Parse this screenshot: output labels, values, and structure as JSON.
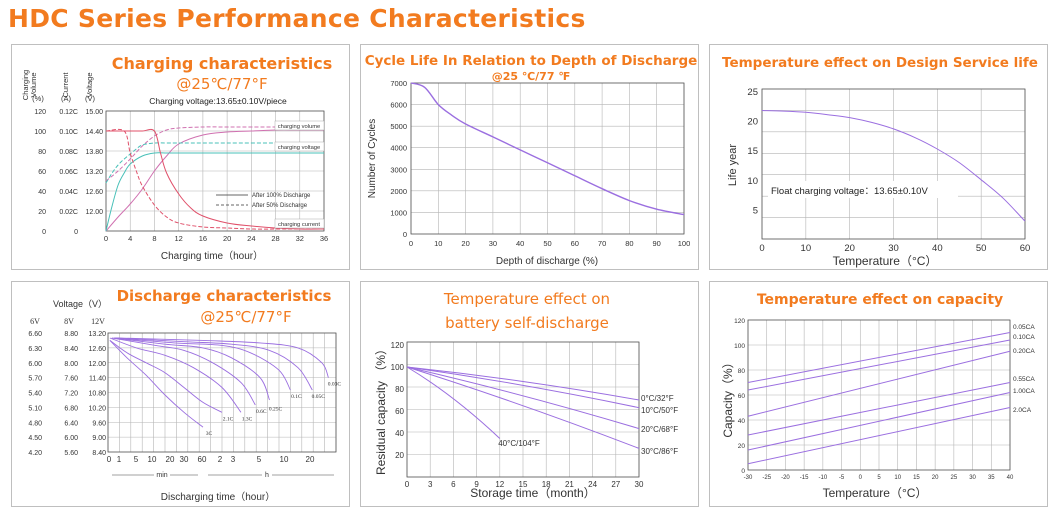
{
  "page_title": "HDC Series Performance Characteristics",
  "colors": {
    "title": "#f27b1f",
    "chart_title": "#7b2fa8",
    "curve": "#9b6fe0",
    "grid": "#b5b5b5"
  },
  "chart_data": [
    {
      "id": "charging",
      "type": "line",
      "title": "Charging characteristics",
      "subtitle": "@25℃/77°F",
      "note": "Charging voltage:13.65±0.10V/piece",
      "xlabel": "Charging time（hour）",
      "xlim": [
        0,
        36
      ],
      "xticks": [
        0,
        4,
        8,
        12,
        16,
        20,
        24,
        28,
        32,
        36
      ],
      "axis_headers": [
        [
          "Charging",
          "Volume",
          "(%)"
        ],
        [
          "Current",
          "(A)"
        ],
        [
          "Voltage",
          "(V)"
        ]
      ],
      "y_rows": [
        {
          "pct": "120",
          "cur": "0.12C",
          "volt": "15.00"
        },
        {
          "pct": "100",
          "cur": "0.10C",
          "volt": "14.40"
        },
        {
          "pct": "80",
          "cur": "0.08C",
          "volt": "13.80"
        },
        {
          "pct": "60",
          "cur": "0.06C",
          "volt": "13.20"
        },
        {
          "pct": "40",
          "cur": "0.04C",
          "volt": "12.60"
        },
        {
          "pct": "20",
          "cur": "0.02C",
          "volt": "12.00"
        },
        {
          "pct": "0",
          "cur": "0",
          "volt": ""
        }
      ],
      "ylim": [
        0,
        120
      ],
      "curve_labels": [
        "charging volume",
        "charging voltage",
        "charging current"
      ],
      "legend": [
        "After 100% Discharge",
        "After  50%  Discharge"
      ],
      "series": [
        {
          "curve": "volume-100",
          "style": "solid",
          "color": "#d070b0",
          "x": [
            0,
            2,
            4,
            6,
            8,
            10,
            12,
            16,
            20,
            24,
            28,
            32,
            36
          ],
          "y": [
            0,
            14,
            27,
            42,
            60,
            75,
            87,
            96,
            99,
            100,
            101,
            101,
            101
          ]
        },
        {
          "curve": "volume-50",
          "style": "dashed",
          "color": "#d070b0",
          "x": [
            0,
            2,
            4,
            6,
            8,
            10,
            12,
            16,
            20,
            24,
            30,
            36
          ],
          "y": [
            50,
            60,
            72,
            85,
            95,
            101,
            103,
            104,
            104,
            104,
            104,
            104
          ]
        },
        {
          "curve": "voltage-100",
          "style": "solid",
          "color": "#48c0b8",
          "x": [
            0,
            1,
            2,
            3,
            4,
            6,
            8,
            10,
            12,
            16,
            20,
            24,
            28,
            32,
            36
          ],
          "y": [
            0,
            25,
            46,
            58,
            67,
            75,
            78,
            78,
            78,
            78,
            78,
            78,
            78,
            78,
            78
          ]
        },
        {
          "curve": "voltage-50",
          "style": "dashed",
          "color": "#48c0b8",
          "x": [
            0,
            1,
            2,
            3,
            4,
            5,
            6,
            8,
            10,
            14,
            20,
            28,
            36
          ],
          "y": [
            48,
            58,
            66,
            72,
            77,
            82,
            86,
            88,
            88,
            88,
            88,
            88,
            88
          ]
        },
        {
          "curve": "current-100",
          "style": "solid",
          "color": "#e0506a",
          "x": [
            0,
            4,
            6,
            8,
            9,
            10,
            12,
            14,
            16,
            20,
            24,
            28,
            32,
            36
          ],
          "y": [
            100,
            100,
            100,
            100,
            78,
            58,
            37,
            23,
            15,
            8,
            5,
            3,
            2,
            2
          ]
        },
        {
          "curve": "current-50",
          "style": "dashed",
          "color": "#e0506a",
          "x": [
            0,
            3,
            4,
            5,
            6,
            8,
            10,
            12,
            16,
            20,
            24,
            30,
            36
          ],
          "y": [
            100,
            100,
            78,
            60,
            45,
            26,
            14,
            8,
            4,
            3,
            2,
            2,
            2
          ]
        }
      ]
    },
    {
      "id": "cycle",
      "type": "line",
      "title": "Cycle Life In Relation to Depth of Discharge",
      "subtitle": "@25 ℃/77 ℉",
      "xlabel": "Depth of  discharge (%)",
      "ylabel": "Number of Cycles",
      "xlim": [
        0,
        100
      ],
      "ylim": [
        0,
        7000
      ],
      "xticks": [
        0,
        10,
        20,
        30,
        40,
        50,
        60,
        70,
        80,
        90,
        100
      ],
      "yticks": [
        0,
        1000,
        2000,
        3000,
        4000,
        5000,
        6000,
        7000
      ],
      "series": [
        {
          "x": [
            0,
            5,
            10,
            15,
            20,
            30,
            40,
            50,
            60,
            70,
            80,
            90,
            100
          ],
          "y": [
            7000,
            6800,
            6000,
            5500,
            5100,
            4500,
            3900,
            3300,
            2700,
            2100,
            1550,
            1150,
            900
          ]
        }
      ]
    },
    {
      "id": "temp_life",
      "type": "line",
      "title": "Temperature effect on Design Service life",
      "xlabel": "Temperature（°C）",
      "ylabel": "Life year",
      "note": "Float charging voltage：13.65±0.10V",
      "xlim": [
        0,
        60
      ],
      "ylim": [
        0,
        25
      ],
      "xticks": [
        0,
        10,
        20,
        30,
        40,
        50,
        60
      ],
      "yticks": [
        5,
        10,
        15,
        20,
        25
      ],
      "series": [
        {
          "x": [
            0,
            5,
            10,
            15,
            20,
            25,
            30,
            35,
            40,
            45,
            50,
            55,
            60
          ],
          "y": [
            21.7,
            21.6,
            21.4,
            21.0,
            20.5,
            19.7,
            18.6,
            17.1,
            15.2,
            12.9,
            10.0,
            6.9,
            3.0
          ]
        }
      ]
    },
    {
      "id": "discharge",
      "type": "line",
      "title": "Discharge characteristics",
      "subtitle": "@25℃/77°F",
      "xlabel": "Discharging time（hour）",
      "voltage_header": "Voltage（V）",
      "voltage_columns": [
        "6V",
        "8V",
        "12V"
      ],
      "y_rows": [
        {
          "v6": "6.60",
          "v8": "8.80",
          "v12": "13.20"
        },
        {
          "v6": "6.30",
          "v8": "8.40",
          "v12": "12.60"
        },
        {
          "v6": "6.00",
          "v8": "8.00",
          "v12": "12.00"
        },
        {
          "v6": "5.70",
          "v8": "7.60",
          "v12": "11.40"
        },
        {
          "v6": "5.40",
          "v8": "7.20",
          "v12": "10.80"
        },
        {
          "v6": "5.10",
          "v8": "6.80",
          "v12": "10.20"
        },
        {
          "v6": "4.80",
          "v8": "6.40",
          "v12": "9.60"
        },
        {
          "v6": "4.50",
          "v8": "6.00",
          "v12": "9.00"
        },
        {
          "v6": "4.20",
          "v8": "5.60",
          "v12": "8.40"
        }
      ],
      "ylim": [
        8.4,
        13.2
      ],
      "xtick_labels": [
        "0",
        "1",
        "5",
        "10",
        "20",
        "30",
        "60",
        "2",
        "3",
        "5",
        "10",
        "20"
      ],
      "xunit_labels": [
        "min",
        "h"
      ],
      "series": [
        {
          "name": "3C",
          "t": [
            0.2,
            2,
            4,
            6,
            8,
            10
          ],
          "y": [
            12.9,
            12.2,
            11.5,
            10.7,
            10.0,
            9.4
          ],
          "label_y": 9.2
        },
        {
          "name": "2.1C",
          "t": [
            0.2,
            2,
            4,
            6,
            8,
            10,
            12
          ],
          "y": [
            12.9,
            12.4,
            12.0,
            11.6,
            11.0,
            10.4,
            10.0
          ],
          "label_y": 9.8
        },
        {
          "name": "1.3C",
          "t": [
            0.2,
            3,
            6,
            9,
            12,
            14
          ],
          "y": [
            13.0,
            12.6,
            12.3,
            11.8,
            11.0,
            10.0
          ],
          "label_y": 9.8
        },
        {
          "name": "0.6C",
          "t": [
            0.4,
            5,
            8,
            11,
            14,
            15.5
          ],
          "y": [
            13.0,
            12.7,
            12.5,
            12.0,
            11.2,
            10.3
          ],
          "label_y": 10.1
        },
        {
          "name": "0.25C",
          "t": [
            0.6,
            6,
            10,
            13,
            16,
            17
          ],
          "y": [
            13.0,
            12.75,
            12.6,
            12.2,
            11.4,
            10.5
          ],
          "label_y": 10.2
        },
        {
          "name": "0.1C",
          "t": [
            0.7,
            7,
            12,
            15,
            18,
            19.2
          ],
          "y": [
            13.0,
            12.8,
            12.7,
            12.4,
            11.7,
            10.9
          ],
          "label_y": 10.7
        },
        {
          "name": "0.05C",
          "t": [
            0.8,
            8,
            13,
            17,
            20,
            21.5
          ],
          "y": [
            13.0,
            12.85,
            12.75,
            12.5,
            11.8,
            10.9
          ],
          "label_y": 10.7
        },
        {
          "name": "0.03C",
          "t": [
            1,
            10,
            16,
            20,
            22.5,
            23.2
          ],
          "y": [
            13.0,
            12.9,
            12.8,
            12.6,
            12.0,
            11.4
          ],
          "label_y": 11.2
        }
      ]
    },
    {
      "id": "self_discharge",
      "type": "line",
      "title": [
        "Temperature effect on",
        "battery self-discharge"
      ],
      "xlabel": "Storage time（month）",
      "ylabel": "Residual capacity （%）",
      "xlim": [
        0,
        30
      ],
      "ylim": [
        0,
        120
      ],
      "xticks": [
        0,
        3,
        6,
        9,
        12,
        15,
        18,
        21,
        24,
        27,
        30
      ],
      "yticks": [
        20,
        40,
        60,
        80,
        100,
        120
      ],
      "series": [
        {
          "name": "0°C/32°F",
          "x": [
            0,
            30
          ],
          "y": [
            100,
            70
          ]
        },
        {
          "name": "10°C/50°F",
          "x": [
            0,
            30
          ],
          "y": [
            100,
            63
          ]
        },
        {
          "name": "20°C/68°F",
          "x": [
            0,
            30
          ],
          "y": [
            100,
            44
          ]
        },
        {
          "name": "30°C/86°F",
          "x": [
            0,
            30
          ],
          "y": [
            100,
            26
          ]
        },
        {
          "name": "40°C/104°F",
          "x": [
            0,
            12
          ],
          "y": [
            100,
            35
          ]
        }
      ]
    },
    {
      "id": "temp_capacity",
      "type": "line",
      "title": "Temperature effect on capacity",
      "xlabel": "Temperature（°C）",
      "ylabel": "Capacity（%）",
      "xlim": [
        -30,
        40
      ],
      "ylim": [
        0,
        120
      ],
      "xticks": [
        -30,
        -25,
        -20,
        -15,
        -10,
        -5,
        0,
        5,
        10,
        15,
        20,
        25,
        30,
        35,
        40
      ],
      "yticks": [
        0,
        20,
        40,
        60,
        80,
        100,
        120
      ],
      "series": [
        {
          "name": "0.05CA",
          "x": [
            -30,
            40
          ],
          "y": [
            70,
            110
          ]
        },
        {
          "name": "0.10CA",
          "x": [
            -30,
            40
          ],
          "y": [
            64,
            104
          ]
        },
        {
          "name": "0.20CA",
          "x": [
            -30,
            40
          ],
          "y": [
            43,
            95
          ]
        },
        {
          "name": "0.55CA",
          "x": [
            -30,
            40
          ],
          "y": [
            28,
            70
          ]
        },
        {
          "name": "1.00CA",
          "x": [
            -30,
            40
          ],
          "y": [
            16,
            62
          ]
        },
        {
          "name": "2.0CA",
          "x": [
            -30,
            40
          ],
          "y": [
            5,
            50
          ]
        }
      ]
    }
  ]
}
